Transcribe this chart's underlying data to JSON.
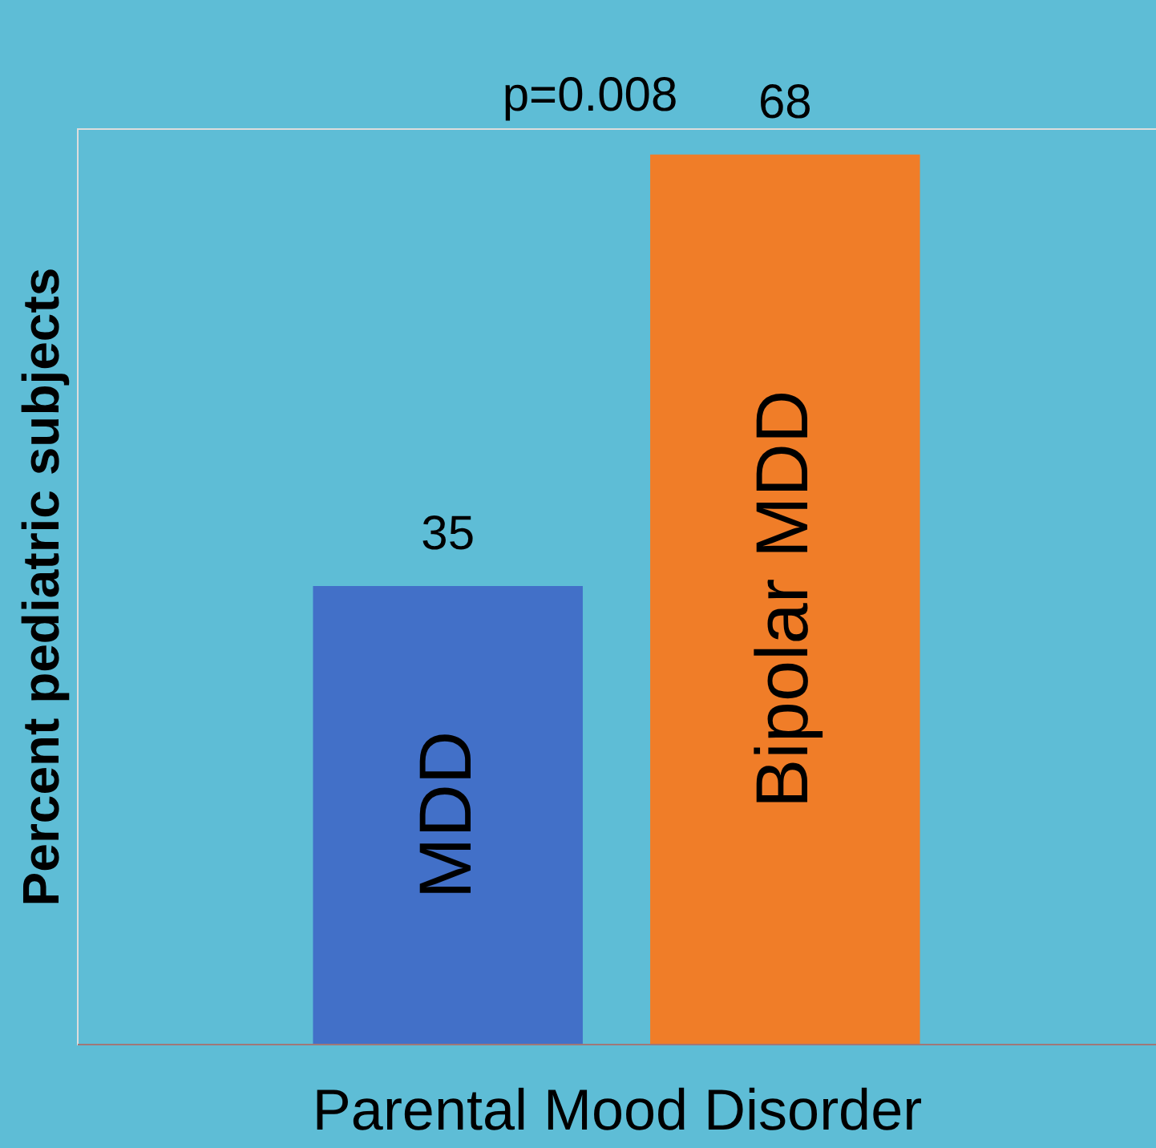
{
  "chart_data": {
    "type": "bar",
    "categories": [
      "MDD",
      "Bipolar MDD"
    ],
    "values": [
      35,
      68
    ],
    "colors": [
      "#4270c8",
      "#f07d28"
    ],
    "xlabel": "Parental Mood Disorder",
    "ylabel": "Percent pediatric subjects",
    "annotations": [
      "p=0.008"
    ],
    "data_labels": true,
    "grid": false,
    "legend": false
  }
}
